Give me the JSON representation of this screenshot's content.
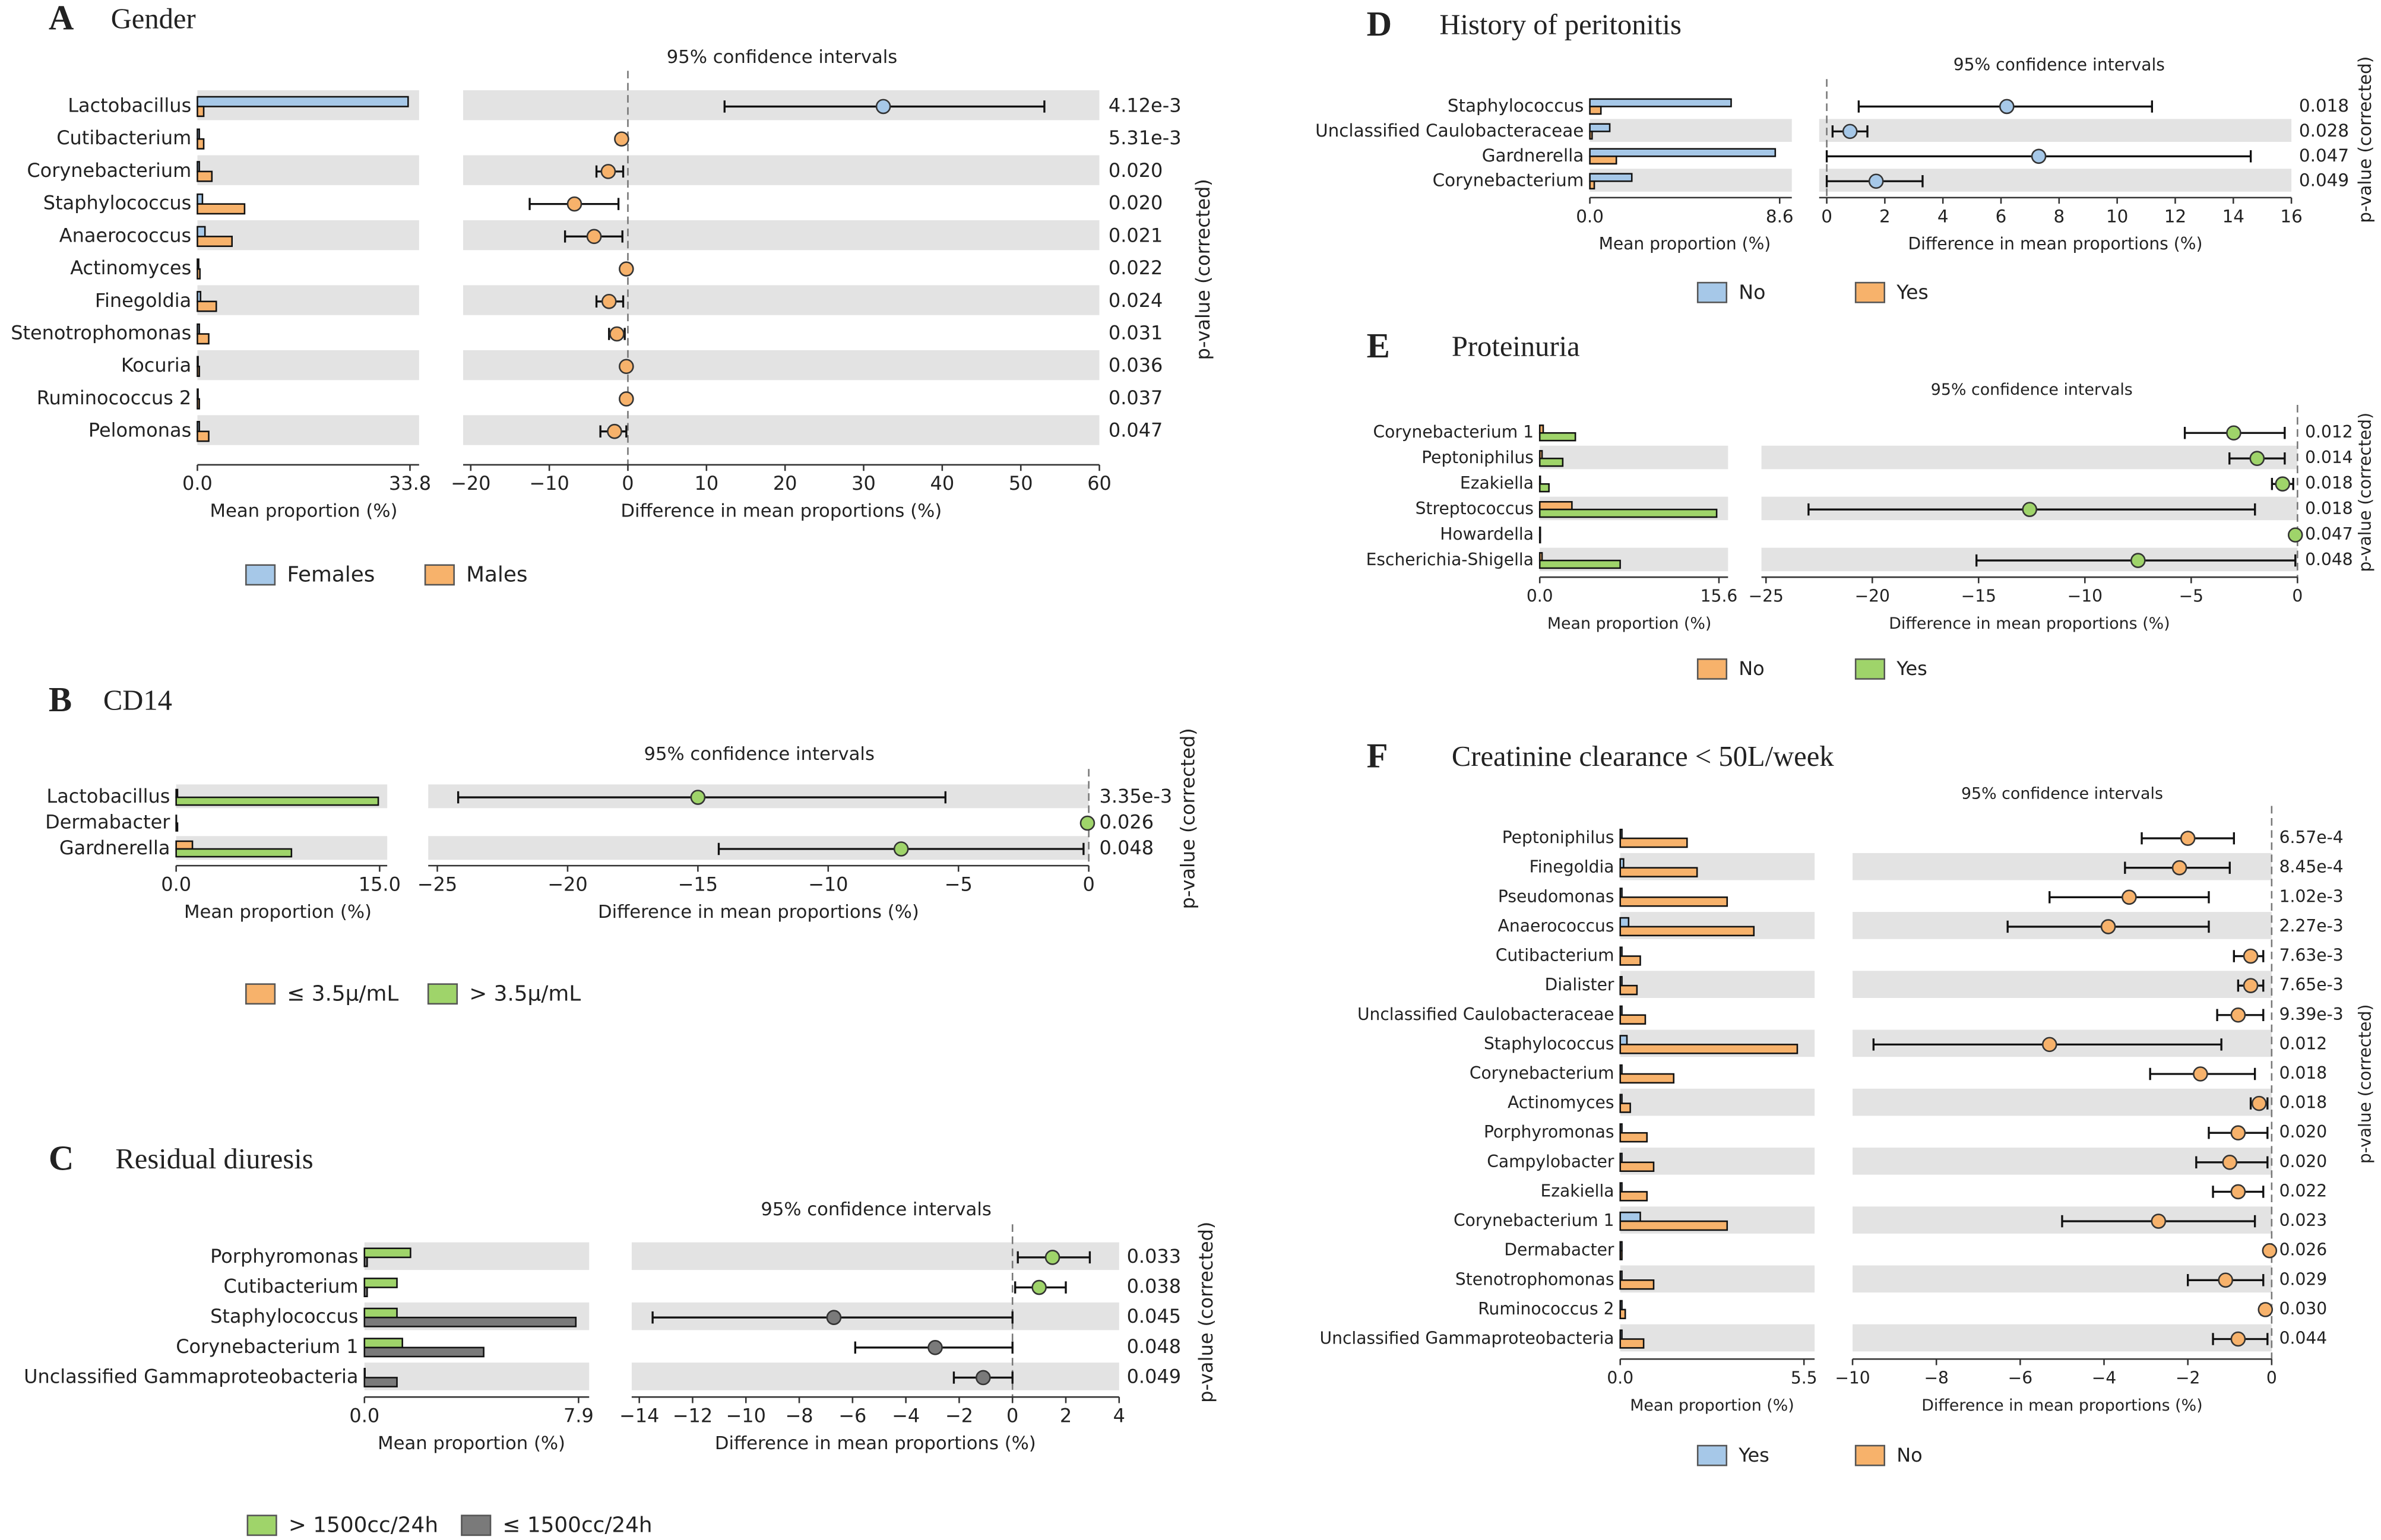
{
  "chart_data": [
    {
      "type": "extended_error_bar",
      "letter": "A",
      "title": "Gender",
      "ci_title": "95% confidence intervals",
      "categories": [
        "Lactobacillus",
        "Cutibacterium",
        "Corynebacterium",
        "Staphylococcus",
        "Anaerococcus",
        "Actinomyces",
        "Finegoldia",
        "Stenotrophomonas",
        "Kocuria",
        "Ruminococcus 2",
        "Pelomonas"
      ],
      "series": [
        {
          "name": "Females",
          "color": "#a6c8e8",
          "values": [
            33.5,
            0.3,
            0.3,
            0.8,
            1.2,
            0.2,
            0.5,
            0.3,
            0.1,
            0.1,
            0.3
          ]
        },
        {
          "name": "Males",
          "color": "#f7b26b",
          "values": [
            1.0,
            1.0,
            2.3,
            7.5,
            5.5,
            0.4,
            3.0,
            1.8,
            0.3,
            0.3,
            1.8
          ]
        }
      ],
      "difference": {
        "values": [
          32.5,
          -0.8,
          -2.5,
          -6.8,
          -4.3,
          -0.2,
          -2.4,
          -1.4,
          -0.2,
          -0.2,
          -1.7
        ],
        "ci_low": [
          12.3,
          -1.3,
          -4.0,
          -12.5,
          -8.0,
          -0.4,
          -4.0,
          -2.4,
          -0.4,
          -0.4,
          -3.5
        ],
        "ci_high": [
          53.0,
          -0.3,
          -0.6,
          -1.2,
          -0.7,
          -0.05,
          -0.6,
          -0.4,
          -0.05,
          -0.05,
          -0.2
        ]
      },
      "p_values": {
        "values": [
          0.00412,
          0.00531,
          0.02,
          0.02,
          0.021,
          0.022,
          0.024,
          0.031,
          0.036,
          0.037,
          0.047
        ],
        "value_labels": [
          "4.12e-3",
          "5.31e-3",
          "0.020",
          "0.020",
          "0.021",
          "0.022",
          "0.024",
          "0.031",
          "0.036",
          "0.037",
          "0.047"
        ]
      },
      "xlim": [
        0,
        33.8
      ],
      "xticks": [
        {
          "value": 0,
          "label": "0.0"
        },
        33.8
      ],
      "xlabel": "Mean proportion (%)",
      "diff_xlim": [
        -20,
        60
      ],
      "diff_xticks": [
        {
          "value": -20,
          "label": "−20"
        },
        {
          "value": -10,
          "label": "−10"
        },
        0,
        10,
        20,
        30,
        40,
        50,
        60
      ],
      "diff_xlabel": "Difference in mean proportions (%)",
      "p_label": "p-value (corrected)"
    },
    {
      "type": "extended_error_bar",
      "letter": "B",
      "title": "CD14",
      "ci_title": "95% confidence intervals",
      "categories": [
        "Lactobacillus",
        "Dermabacter",
        "Gardnerella"
      ],
      "series": [
        {
          "name": "≤ 3.5μ/mL",
          "color": "#f7b26b",
          "values": [
            0.1,
            0.02,
            1.2
          ]
        },
        {
          "name": "> 3.5μ/mL",
          "color": "#9fd46a",
          "values": [
            14.9,
            0.1,
            8.5
          ]
        }
      ],
      "difference": {
        "values": [
          -15.0,
          -0.05,
          -7.2
        ],
        "ci_low": [
          -24.2,
          -0.1,
          -14.2
        ],
        "ci_high": [
          -5.5,
          0.0,
          -0.2
        ]
      },
      "p_values": {
        "values": [
          0.00335,
          0.026,
          0.048
        ],
        "value_labels": [
          "3.35e-3",
          "0.026",
          "0.048"
        ]
      },
      "xlim": [
        0,
        15.0
      ],
      "xticks": [
        {
          "value": 0,
          "label": "0.0"
        },
        {
          "value": 15.0,
          "label": "15.0"
        }
      ],
      "xlabel": "Mean proportion (%)",
      "diff_xlim": [
        -25,
        0
      ],
      "diff_xticks": [
        {
          "value": -25,
          "label": "−25"
        },
        {
          "value": -20,
          "label": "−20"
        },
        {
          "value": -15,
          "label": "−15"
        },
        {
          "value": -10,
          "label": "−10"
        },
        {
          "value": -5,
          "label": "−5"
        },
        0
      ],
      "diff_xlabel": "Difference in mean proportions (%)",
      "p_label": "p-value (corrected)"
    },
    {
      "type": "extended_error_bar",
      "letter": "C",
      "title": "Residual diuresis",
      "ci_title": "95% confidence intervals",
      "categories": [
        "Porphyromonas",
        "Cutibacterium",
        "Staphylococcus",
        "Corynebacterium 1",
        "Unclassified Gammaproteobacteria"
      ],
      "series": [
        {
          "name": "> 1500cc/24h",
          "color": "#9fd46a",
          "values": [
            1.7,
            1.2,
            1.2,
            1.4,
            0.02
          ]
        },
        {
          "name": "≤ 1500cc/24h",
          "color": "#7a7a7a",
          "values": [
            0.1,
            0.1,
            7.8,
            4.4,
            1.2
          ]
        }
      ],
      "difference": {
        "values": [
          1.5,
          1.0,
          -6.7,
          -2.9,
          -1.1
        ],
        "ci_low": [
          0.2,
          0.1,
          -13.5,
          -5.9,
          -2.2
        ],
        "ci_high": [
          2.9,
          2.0,
          0.0,
          0.0,
          0.0
        ]
      },
      "p_values": {
        "values": [
          0.033,
          0.038,
          0.045,
          0.048,
          0.049
        ],
        "value_labels": [
          "0.033",
          "0.038",
          "0.045",
          "0.048",
          "0.049"
        ]
      },
      "xlim": [
        0,
        7.9
      ],
      "xticks": [
        {
          "value": 0,
          "label": "0.0"
        },
        7.9
      ],
      "xlabel": "Mean proportion (%)",
      "diff_xlim": [
        -14,
        4
      ],
      "diff_xticks": [
        {
          "value": -14,
          "label": "−14"
        },
        {
          "value": -12,
          "label": "−12"
        },
        {
          "value": -10,
          "label": "−10"
        },
        {
          "value": -8,
          "label": "−8"
        },
        {
          "value": -6,
          "label": "−6"
        },
        {
          "value": -4,
          "label": "−4"
        },
        {
          "value": -2,
          "label": "−2"
        },
        0,
        2,
        4
      ],
      "diff_xlabel": "Difference in mean proportions (%)",
      "p_label": "p-value (corrected)"
    },
    {
      "type": "extended_error_bar",
      "letter": "D",
      "title": "History of peritonitis",
      "ci_title": "95% confidence intervals",
      "categories": [
        "Staphylococcus",
        "Unclassified Caulobacteraceae",
        "Gardnerella",
        "Corynebacterium"
      ],
      "series": [
        {
          "name": "No",
          "color": "#a6c8e8",
          "values": [
            6.4,
            0.9,
            8.4,
            1.9
          ]
        },
        {
          "name": "Yes",
          "color": "#f7b26b",
          "values": [
            0.5,
            0.1,
            1.2,
            0.2
          ]
        }
      ],
      "difference": {
        "values": [
          6.2,
          0.8,
          7.3,
          1.7
        ],
        "ci_low": [
          1.1,
          0.2,
          0.0,
          0.0
        ],
        "ci_high": [
          11.2,
          1.4,
          14.6,
          3.3
        ]
      },
      "p_values": {
        "values": [
          0.018,
          0.028,
          0.047,
          0.049
        ],
        "value_labels": [
          "0.018",
          "0.028",
          "0.047",
          "0.049"
        ]
      },
      "xlim": [
        0,
        8.6
      ],
      "xticks": [
        {
          "value": 0,
          "label": "0.0"
        },
        8.6
      ],
      "xlabel": "Mean proportion (%)",
      "diff_xlim": [
        0,
        16
      ],
      "diff_xticks": [
        0,
        2,
        4,
        6,
        8,
        10,
        12,
        14,
        16
      ],
      "diff_xlabel": "Difference in mean proportions (%)",
      "p_label": "p-value (corrected)"
    },
    {
      "type": "extended_error_bar",
      "letter": "E",
      "title": "Proteinuria",
      "ci_title": "95% confidence intervals",
      "categories": [
        "Corynebacterium 1",
        "Peptoniphilus",
        "Ezakiella",
        "Streptococcus",
        "Howardella",
        "Escherichia-Shigella"
      ],
      "series": [
        {
          "name": "No",
          "color": "#f7b26b",
          "values": [
            0.3,
            0.2,
            0.05,
            2.8,
            0.05,
            0.2
          ]
        },
        {
          "name": "Yes",
          "color": "#9fd46a",
          "values": [
            3.1,
            2.0,
            0.8,
            15.4,
            0.05,
            7.0
          ]
        }
      ],
      "difference": {
        "values": [
          -3.0,
          -1.9,
          -0.7,
          -12.6,
          -0.1,
          -7.5
        ],
        "ci_low": [
          -5.3,
          -3.2,
          -1.2,
          -23.0,
          -0.15,
          -15.1
        ],
        "ci_high": [
          -0.6,
          -0.6,
          -0.2,
          -2.0,
          0.0,
          -0.1
        ]
      },
      "p_values": {
        "values": [
          0.012,
          0.014,
          0.018,
          0.018,
          0.047,
          0.048
        ],
        "value_labels": [
          "0.012",
          "0.014",
          "0.018",
          "0.018",
          "0.047",
          "0.048"
        ]
      },
      "xlim": [
        0,
        15.6
      ],
      "xticks": [
        {
          "value": 0,
          "label": "0.0"
        },
        15.6
      ],
      "xlabel": "Mean proportion (%)",
      "diff_xlim": [
        -25,
        0
      ],
      "diff_xticks": [
        {
          "value": -25,
          "label": "−25"
        },
        {
          "value": -20,
          "label": "−20"
        },
        {
          "value": -15,
          "label": "−15"
        },
        {
          "value": -10,
          "label": "−10"
        },
        {
          "value": -5,
          "label": "−5"
        },
        0
      ],
      "diff_xlabel": "Difference in mean proportions (%)",
      "p_label": "p-value (corrected)"
    },
    {
      "type": "extended_error_bar",
      "letter": "F",
      "title": "Creatinine clearance < 50L/week",
      "ci_title": "95% confidence intervals",
      "categories": [
        "Peptoniphilus",
        "Finegoldia",
        "Pseudomonas",
        "Anaerococcus",
        "Cutibacterium",
        "Dialister",
        "Unclassified Caulobacteraceae",
        "Staphylococcus",
        "Corynebacterium",
        "Actinomyces",
        "Porphyromonas",
        "Campylobacter",
        "Ezakiella",
        "Corynebacterium 1",
        "Dermabacter",
        "Stenotrophomonas",
        "Ruminococcus 2",
        "Unclassified Gammaproteobacteria"
      ],
      "series": [
        {
          "name": "Yes",
          "color": "#a6c8e8",
          "values": [
            0.05,
            0.1,
            0.05,
            0.25,
            0.05,
            0.05,
            0.05,
            0.2,
            0.05,
            0.05,
            0.05,
            0.05,
            0.05,
            0.6,
            0.05,
            0.05,
            0.05,
            0.05
          ]
        },
        {
          "name": "No",
          "color": "#f7b26b",
          "values": [
            2.0,
            2.3,
            3.2,
            4.0,
            0.6,
            0.5,
            0.75,
            5.3,
            1.6,
            0.3,
            0.8,
            1.0,
            0.8,
            3.2,
            0.05,
            1.0,
            0.15,
            0.7
          ]
        }
      ],
      "difference": {
        "values": [
          -2.0,
          -2.2,
          -3.4,
          -3.9,
          -0.5,
          -0.5,
          -0.8,
          -5.3,
          -1.7,
          -0.3,
          -0.8,
          -1.0,
          -0.8,
          -2.7,
          -0.05,
          -1.1,
          -0.15,
          -0.8
        ],
        "ci_low": [
          -3.1,
          -3.5,
          -5.3,
          -6.3,
          -0.9,
          -0.8,
          -1.3,
          -9.5,
          -2.9,
          -0.5,
          -1.5,
          -1.8,
          -1.4,
          -5.0,
          -0.1,
          -2.0,
          -0.25,
          -1.4
        ],
        "ci_high": [
          -0.9,
          -1.0,
          -1.5,
          -1.5,
          -0.2,
          -0.2,
          -0.2,
          -1.2,
          -0.4,
          -0.1,
          -0.1,
          -0.1,
          -0.2,
          -0.4,
          0.0,
          -0.2,
          -0.05,
          -0.1
        ]
      },
      "p_values": {
        "values": [
          0.000657,
          0.000845,
          0.00102,
          0.00227,
          0.00763,
          0.00765,
          0.00939,
          0.012,
          0.018,
          0.018,
          0.02,
          0.02,
          0.022,
          0.023,
          0.026,
          0.029,
          0.03,
          0.044
        ],
        "value_labels": [
          "6.57e-4",
          "8.45e-4",
          "1.02e-3",
          "2.27e-3",
          "7.63e-3",
          "7.65e-3",
          "9.39e-3",
          "0.012",
          "0.018",
          "0.018",
          "0.020",
          "0.020",
          "0.022",
          "0.023",
          "0.026",
          "0.029",
          "0.030",
          "0.044"
        ]
      },
      "xlim": [
        0,
        5.5
      ],
      "xticks": [
        {
          "value": 0,
          "label": "0.0"
        },
        5.5
      ],
      "xlabel": "Mean proportion (%)",
      "diff_xlim": [
        -10,
        0
      ],
      "diff_xticks": [
        {
          "value": -10,
          "label": "−10"
        },
        {
          "value": -8,
          "label": "−8"
        },
        {
          "value": -6,
          "label": "−6"
        },
        {
          "value": -4,
          "label": "−4"
        },
        {
          "value": -2,
          "label": "−2"
        },
        0
      ],
      "diff_xlabel": "Difference in mean proportions (%)",
      "p_label": "p-value (corrected)"
    }
  ]
}
